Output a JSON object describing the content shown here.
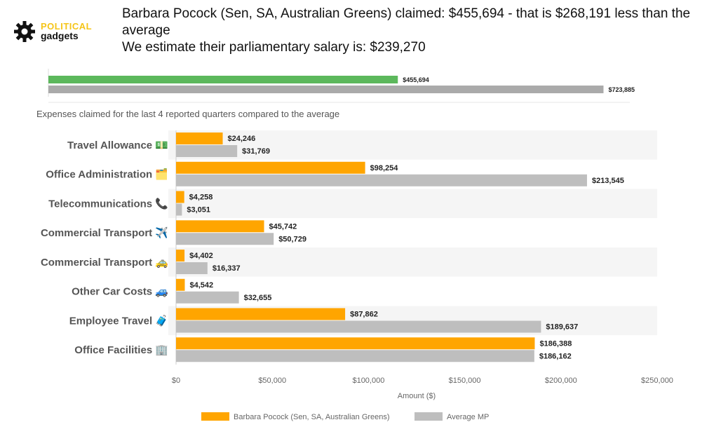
{
  "logo": {
    "word1": "POLITICAL",
    "word2": "gadgets",
    "icon": "gear-icon"
  },
  "headline": {
    "line1": "Barbara Pocock (Sen, SA, Australian Greens) claimed: $455,694 - that is $268,191 less than the average",
    "line2": "We estimate their parliamentary salary is: $239,270"
  },
  "subtitle": "Expenses claimed for the last 4 reported quarters compared to the average",
  "colors": {
    "member": "#FFA500",
    "average": "#BEBEBE",
    "summary_member": "#5CB85C",
    "summary_average": "#AAAAAA",
    "band": "#F5F5F5"
  },
  "chart_data": [
    {
      "type": "bar",
      "orientation": "horizontal",
      "series": [
        {
          "name": "",
          "values": [
            455694
          ],
          "labels": [
            "$455,694"
          ]
        },
        {
          "name": "",
          "values": [
            723885
          ],
          "labels": [
            "$723,885"
          ]
        }
      ],
      "xlim": [
        0,
        750000
      ]
    },
    {
      "type": "bar",
      "orientation": "horizontal",
      "categories": [
        "Travel Allowance 💵",
        "Office Administration 🗂️",
        "Telecommunications 📞",
        "Commercial Transport ✈️",
        "Commercial Transport 🚕",
        "Other Car Costs 🚙",
        "Employee Travel 🧳",
        "Office Facilities 🏢"
      ],
      "series": [
        {
          "name": "Barbara Pocock  (Sen, SA, Australian Greens)",
          "values": [
            24246,
            98254,
            4258,
            45742,
            4402,
            4542,
            87862,
            186388
          ],
          "labels": [
            "$24,246",
            "$98,254",
            "$4,258",
            "$45,742",
            "$4,402",
            "$4,542",
            "$87,862",
            "$186,388"
          ]
        },
        {
          "name": "Average MP",
          "values": [
            31769,
            213545,
            3051,
            50729,
            16337,
            32655,
            189637,
            186162
          ],
          "labels": [
            "$31,769",
            "$213,545",
            "$3,051",
            "$50,729",
            "$16,337",
            "$32,655",
            "$189,637",
            "$186,162"
          ]
        }
      ],
      "xlabel": "Amount ($)",
      "xticks": [
        "$0",
        "$50,000",
        "$100,000",
        "$150,000",
        "$200,000",
        "$250,000"
      ],
      "xlim": [
        0,
        250000
      ],
      "legend": "bottom"
    }
  ]
}
